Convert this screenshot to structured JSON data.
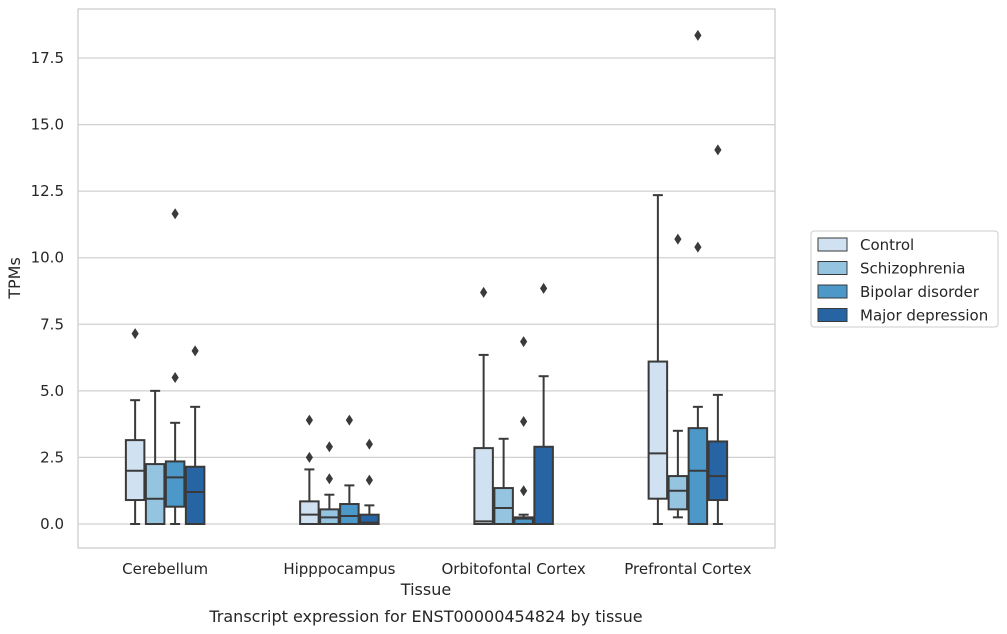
{
  "chart_data": {
    "type": "box",
    "xlabel": "Tissue",
    "ylabel": "TPMs",
    "caption": "Transcript expression for ENST00000454824 by tissue",
    "ylim": [
      -0.9,
      19.3
    ],
    "yticks": [
      0.0,
      2.5,
      5.0,
      7.5,
      10.0,
      12.5,
      15.0,
      17.5
    ],
    "ytick_labels": [
      "0.0",
      "2.5",
      "5.0",
      "7.5",
      "10.0",
      "12.5",
      "15.0",
      "17.5"
    ],
    "grid": "horizontal",
    "legend_position": "right",
    "categories": [
      "Cerebellum",
      "Hipppocampus",
      "Orbitofontal Cortex",
      "Prefrontal Cortex"
    ],
    "series": [
      {
        "name": "Control",
        "color": "#d0e2f2",
        "boxes": [
          {
            "whislo": 0.0,
            "q1": 0.9,
            "med": 2.0,
            "q3": 3.15,
            "whishi": 4.65,
            "fliers": [
              7.15
            ]
          },
          {
            "whislo": 0.0,
            "q1": 0.0,
            "med": 0.35,
            "q3": 0.85,
            "whishi": 2.05,
            "fliers": [
              2.5,
              3.9
            ]
          },
          {
            "whislo": 0.0,
            "q1": 0.0,
            "med": 0.1,
            "q3": 2.85,
            "whishi": 6.35,
            "fliers": [
              8.7
            ]
          },
          {
            "whislo": 0.0,
            "q1": 0.95,
            "med": 2.65,
            "q3": 6.1,
            "whishi": 12.35,
            "fliers": []
          }
        ]
      },
      {
        "name": "Schizophrenia",
        "color": "#94c4df",
        "boxes": [
          {
            "whislo": 0.0,
            "q1": 0.0,
            "med": 0.95,
            "q3": 2.25,
            "whishi": 5.0,
            "fliers": []
          },
          {
            "whislo": 0.0,
            "q1": 0.0,
            "med": 0.25,
            "q3": 0.55,
            "whishi": 1.1,
            "fliers": [
              1.7,
              2.9
            ]
          },
          {
            "whislo": 0.0,
            "q1": 0.0,
            "med": 0.6,
            "q3": 1.35,
            "whishi": 3.2,
            "fliers": []
          },
          {
            "whislo": 0.25,
            "q1": 0.55,
            "med": 1.25,
            "q3": 1.8,
            "whishi": 3.5,
            "fliers": [
              10.7
            ]
          }
        ]
      },
      {
        "name": "Bipolar disorder",
        "color": "#4b98c9",
        "boxes": [
          {
            "whislo": 0.0,
            "q1": 0.65,
            "med": 1.75,
            "q3": 2.35,
            "whishi": 3.8,
            "fliers": [
              5.5,
              11.65
            ]
          },
          {
            "whislo": 0.0,
            "q1": 0.0,
            "med": 0.3,
            "q3": 0.75,
            "whishi": 1.45,
            "fliers": [
              3.9
            ]
          },
          {
            "whislo": 0.0,
            "q1": 0.0,
            "med": 0.2,
            "q3": 0.25,
            "whishi": 0.35,
            "fliers": [
              1.25,
              3.85,
              6.85
            ]
          },
          {
            "whislo": 0.0,
            "q1": 0.0,
            "med": 2.0,
            "q3": 3.6,
            "whishi": 4.4,
            "fliers": [
              10.4,
              18.35
            ]
          }
        ]
      },
      {
        "name": "Major depression",
        "color": "#2764a4",
        "boxes": [
          {
            "whislo": 0.0,
            "q1": 0.0,
            "med": 1.2,
            "q3": 2.15,
            "whishi": 4.4,
            "fliers": [
              6.5
            ]
          },
          {
            "whislo": 0.0,
            "q1": 0.0,
            "med": 0.05,
            "q3": 0.35,
            "whishi": 0.7,
            "fliers": [
              1.65,
              3.0
            ]
          },
          {
            "whislo": 0.0,
            "q1": 0.0,
            "med": 0.0,
            "q3": 2.9,
            "whishi": 5.55,
            "fliers": [
              8.85
            ]
          },
          {
            "whislo": 0.0,
            "q1": 0.9,
            "med": 1.8,
            "q3": 3.1,
            "whishi": 4.85,
            "fliers": [
              14.05
            ]
          }
        ]
      }
    ]
  }
}
